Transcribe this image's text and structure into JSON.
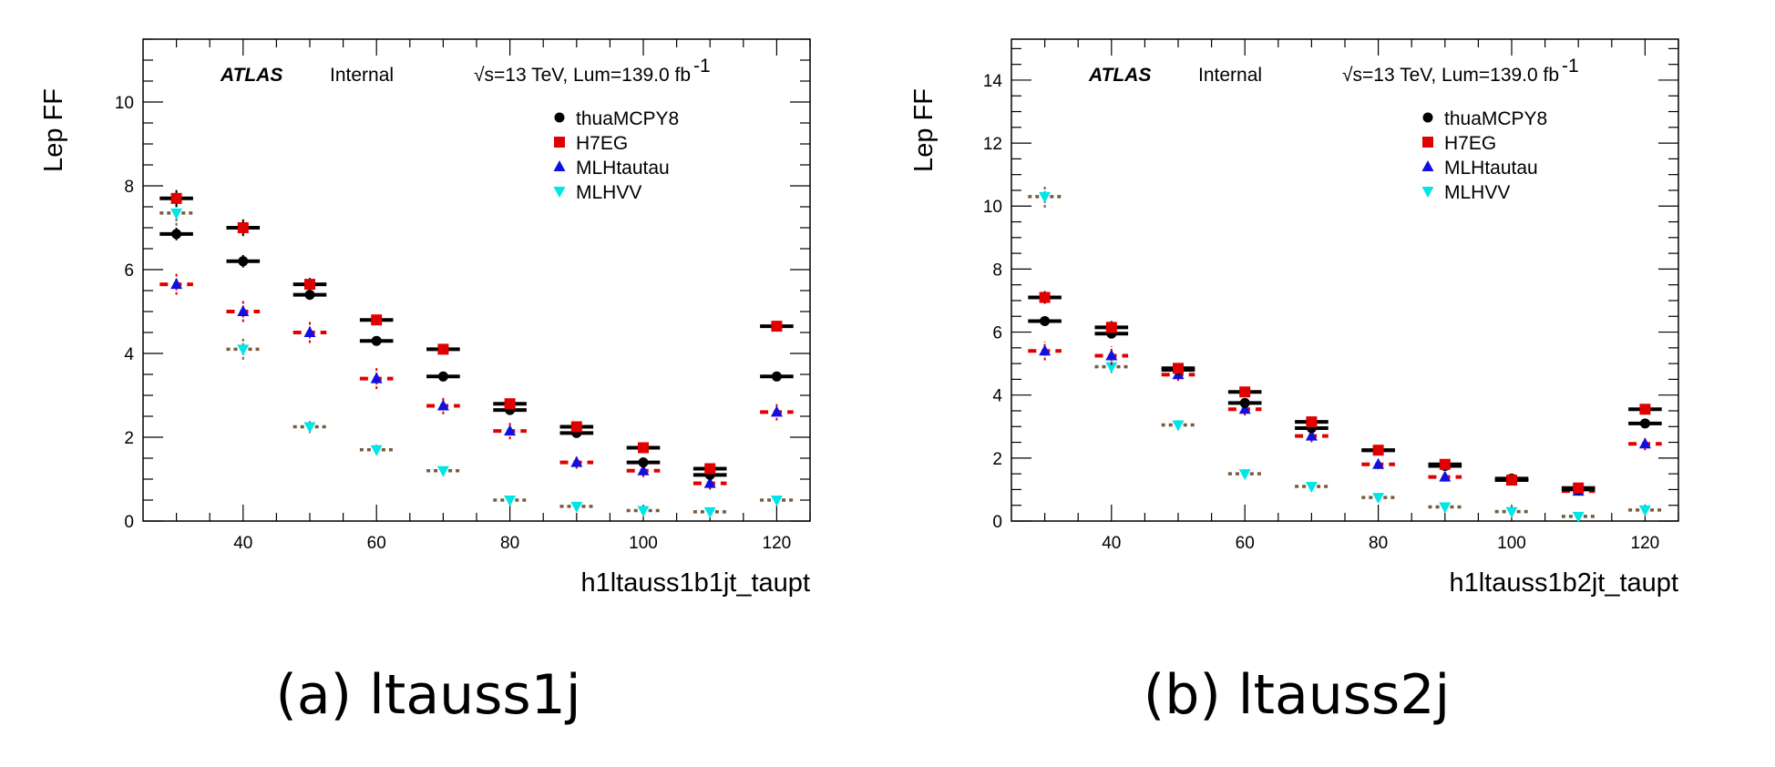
{
  "colors": {
    "thuaMCPY8": "#000000",
    "H7EG": "#e00000",
    "MLHtautau": "#1010e0",
    "MLHVV": "#00e5e5",
    "MLHVV_line": "#7a5a3a"
  },
  "legend": {
    "items": [
      {
        "label": "thuaMCPY8",
        "marker": "circle"
      },
      {
        "label": "H7EG",
        "marker": "square"
      },
      {
        "label": "MLHtautau",
        "marker": "triangle-up"
      },
      {
        "label": "MLHVV",
        "marker": "triangle-down"
      }
    ]
  },
  "chart_data": [
    {
      "type": "scatter",
      "atlas_label": "ATLAS",
      "atlas_status": "Internal",
      "energy_label": "√s=13 TeV, Lum=139.0 fb",
      "energy_sup": "-1",
      "ylabel": "Lep FF",
      "xlabel": "h1ltauss1b1jt_taupt",
      "caption": "(a) ltauss1j",
      "xlim": [
        25,
        125
      ],
      "ylim": [
        0,
        11.5
      ],
      "xticks": [
        40,
        60,
        80,
        100,
        120
      ],
      "yticks": [
        0,
        2,
        4,
        6,
        8,
        10
      ],
      "x": [
        30,
        40,
        50,
        60,
        70,
        80,
        90,
        100,
        110,
        120
      ],
      "series": [
        {
          "name": "thuaMCPY8",
          "values": [
            6.85,
            6.2,
            5.4,
            4.3,
            3.45,
            2.65,
            2.1,
            1.4,
            1.1,
            3.45
          ],
          "errors": [
            0.15,
            0.15,
            0.12,
            0.1,
            0.1,
            0.08,
            0.08,
            0.06,
            0.06,
            0.1
          ]
        },
        {
          "name": "H7EG",
          "values": [
            7.7,
            7.0,
            5.65,
            4.8,
            4.1,
            2.8,
            2.25,
            1.75,
            1.25,
            4.65
          ],
          "errors": [
            0.2,
            0.2,
            0.15,
            0.12,
            0.12,
            0.1,
            0.1,
            0.08,
            0.08,
            0.12
          ]
        },
        {
          "name": "MLHtautau",
          "values": [
            5.65,
            5.0,
            4.5,
            3.4,
            2.75,
            2.15,
            1.4,
            1.2,
            0.9,
            2.6
          ],
          "errors": [
            0.25,
            0.25,
            0.25,
            0.25,
            0.2,
            0.2,
            0.15,
            0.15,
            0.15,
            0.2
          ]
        },
        {
          "name": "MLHVV",
          "values": [
            7.35,
            4.1,
            2.25,
            1.7,
            1.2,
            0.5,
            0.35,
            0.25,
            0.22,
            0.5
          ],
          "errors": [
            0.3,
            0.25,
            0.15,
            0.12,
            0.1,
            0.08,
            0.08,
            0.06,
            0.06,
            0.08
          ]
        }
      ]
    },
    {
      "type": "scatter",
      "atlas_label": "ATLAS",
      "atlas_status": "Internal",
      "energy_label": "√s=13 TeV, Lum=139.0 fb",
      "energy_sup": "-1",
      "ylabel": "Lep FF",
      "xlabel": "h1ltauss1b2jt_taupt",
      "caption": "(b) ltauss2j",
      "xlim": [
        25,
        125
      ],
      "ylim": [
        0,
        15.3
      ],
      "xticks": [
        40,
        60,
        80,
        100,
        120
      ],
      "yticks": [
        0,
        2,
        4,
        6,
        8,
        10,
        12,
        14
      ],
      "x": [
        30,
        40,
        50,
        60,
        70,
        80,
        90,
        100,
        110,
        120
      ],
      "series": [
        {
          "name": "thuaMCPY8",
          "values": [
            6.35,
            5.95,
            4.8,
            3.75,
            2.95,
            2.25,
            1.75,
            1.35,
            1.0,
            3.1
          ],
          "errors": [
            0.15,
            0.15,
            0.12,
            0.12,
            0.1,
            0.08,
            0.08,
            0.06,
            0.06,
            0.1
          ]
        },
        {
          "name": "H7EG",
          "values": [
            7.1,
            6.15,
            4.85,
            4.1,
            3.15,
            2.25,
            1.8,
            1.3,
            1.05,
            3.55
          ],
          "errors": [
            0.2,
            0.2,
            0.15,
            0.12,
            0.12,
            0.1,
            0.08,
            0.08,
            0.06,
            0.12
          ]
        },
        {
          "name": "MLHtautau",
          "values": [
            5.4,
            5.25,
            4.65,
            3.55,
            2.7,
            1.8,
            1.4,
            1.3,
            0.95,
            2.45
          ],
          "errors": [
            0.3,
            0.3,
            0.2,
            0.2,
            0.2,
            0.15,
            0.15,
            0.12,
            0.12,
            0.2
          ]
        },
        {
          "name": "MLHVV",
          "values": [
            10.3,
            4.9,
            3.05,
            1.5,
            1.1,
            0.75,
            0.45,
            0.3,
            0.15,
            0.35
          ],
          "errors": [
            0.35,
            0.2,
            0.15,
            0.12,
            0.1,
            0.08,
            0.08,
            0.06,
            0.05,
            0.06
          ]
        }
      ]
    }
  ]
}
